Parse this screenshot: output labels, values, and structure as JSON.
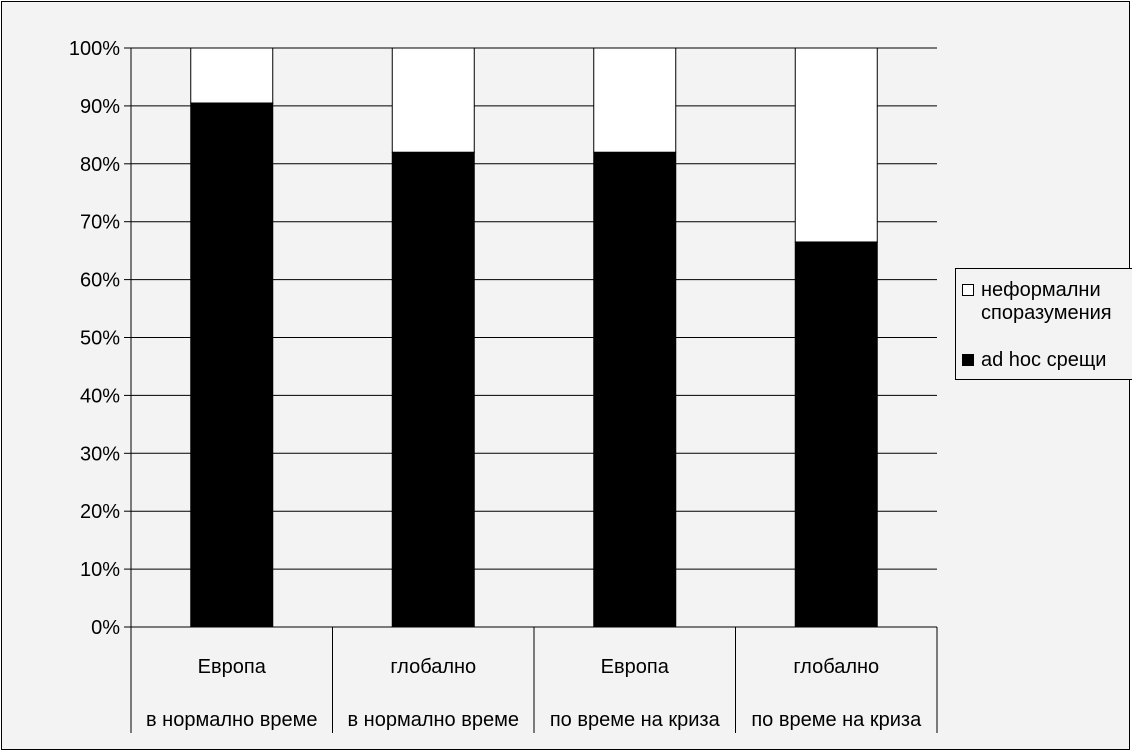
{
  "chart_data": {
    "type": "bar",
    "stacked": true,
    "percent": true,
    "categories": [
      [
        "Европа",
        "в нормално време"
      ],
      [
        "глобално",
        "в нормално време"
      ],
      [
        "Европа",
        "по време на криза"
      ],
      [
        "глобално",
        "по време на криза"
      ]
    ],
    "series": [
      {
        "name": "ad hoc срещи",
        "values": [
          90.5,
          82,
          82,
          66.5
        ],
        "color": "#000000"
      },
      {
        "name": "неформални споразумения",
        "values": [
          9.5,
          18,
          18,
          33.5
        ],
        "color": "#ffffff"
      }
    ],
    "y_ticks": [
      "0%",
      "10%",
      "20%",
      "30%",
      "40%",
      "50%",
      "60%",
      "70%",
      "80%",
      "90%",
      "100%"
    ],
    "ylim": [
      0,
      100
    ],
    "grid": true,
    "legend_position": "right",
    "background": "#f3f3f3"
  },
  "legend": {
    "item1_line1": "неформални",
    "item1_line2": "споразумения",
    "item2": "ad hoc срещи"
  }
}
